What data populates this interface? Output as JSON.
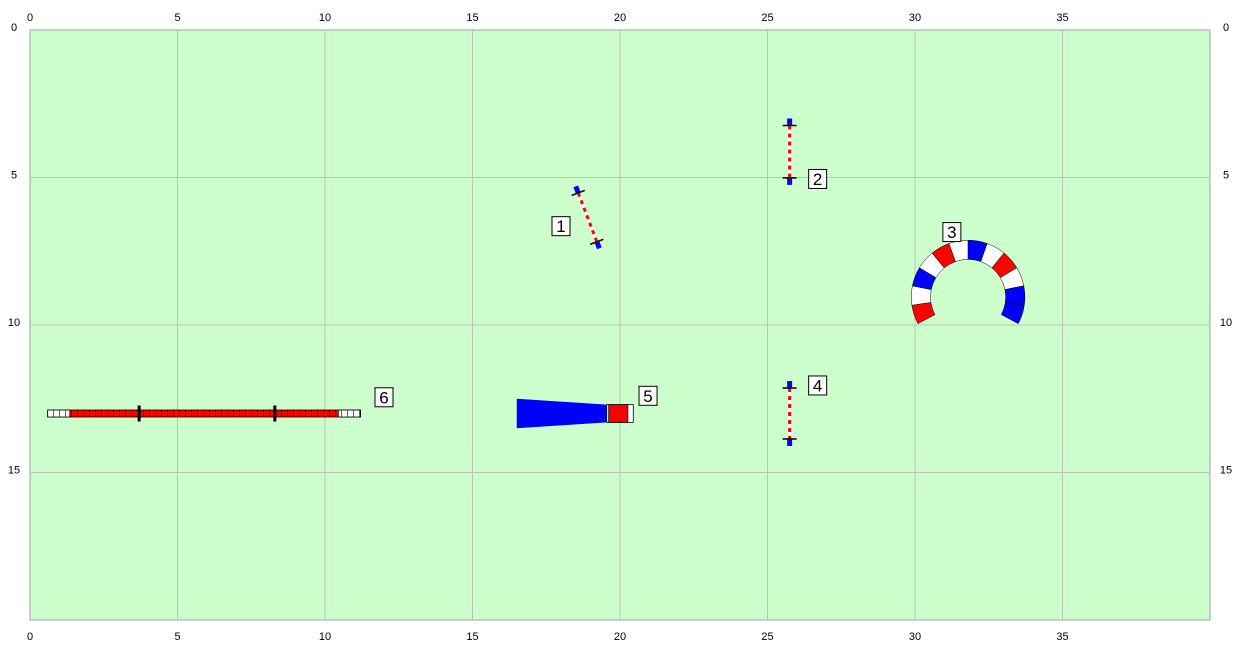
{
  "course": {
    "field": {
      "width_m": 40,
      "height_m": 20,
      "color": "#ccffcc",
      "grid_color": "#c0c0c0",
      "grid_step_m": 5
    },
    "axis_ticks_x": [
      "0",
      "5",
      "10",
      "15",
      "20",
      "25",
      "30",
      "35"
    ],
    "axis_ticks_y": [
      "0",
      "5",
      "10",
      "15"
    ],
    "colors": {
      "red": "#ff0000",
      "blue": "#0000ff",
      "white": "#ffffff",
      "outline": "#000000"
    },
    "obstacles": [
      {
        "number": "1",
        "type": "jump",
        "x1": 18.5,
        "y1": 5.3,
        "x2": 19.3,
        "y2": 7.4
      },
      {
        "number": "2",
        "type": "jump",
        "x1": 25.75,
        "y1": 3.0,
        "x2": 25.75,
        "y2": 5.25
      },
      {
        "number": "3",
        "type": "tunnel",
        "center_x": 31.8,
        "center_y": 9.05,
        "radius": 1.6,
        "start_deg": -118,
        "end_deg": 118,
        "segments": 12,
        "width": 0.65
      },
      {
        "number": "4",
        "type": "jump",
        "x1": 25.75,
        "y1": 11.9,
        "x2": 25.75,
        "y2": 14.1
      },
      {
        "number": "5",
        "type": "chute",
        "x_start": 16.5,
        "x_end": 19.55,
        "y": 13.0,
        "half_w_wide": 0.5,
        "half_w_narrow": 0.3,
        "barrel_x_end": 20.45
      },
      {
        "number": "6",
        "type": "dogwalk",
        "x_start": 0.6,
        "x_end": 11.2,
        "y": 13.0,
        "supports": [
          3.7,
          8.3
        ]
      }
    ],
    "labels": [
      {
        "text": "1",
        "x": 18.0,
        "y": 6.65
      },
      {
        "text": "2",
        "x": 26.7,
        "y": 5.05
      },
      {
        "text": "3",
        "x": 31.25,
        "y": 6.85
      },
      {
        "text": "4",
        "x": 26.7,
        "y": 12.05
      },
      {
        "text": "5",
        "x": 20.95,
        "y": 12.4
      },
      {
        "text": "6",
        "x": 12.0,
        "y": 12.45
      }
    ]
  }
}
